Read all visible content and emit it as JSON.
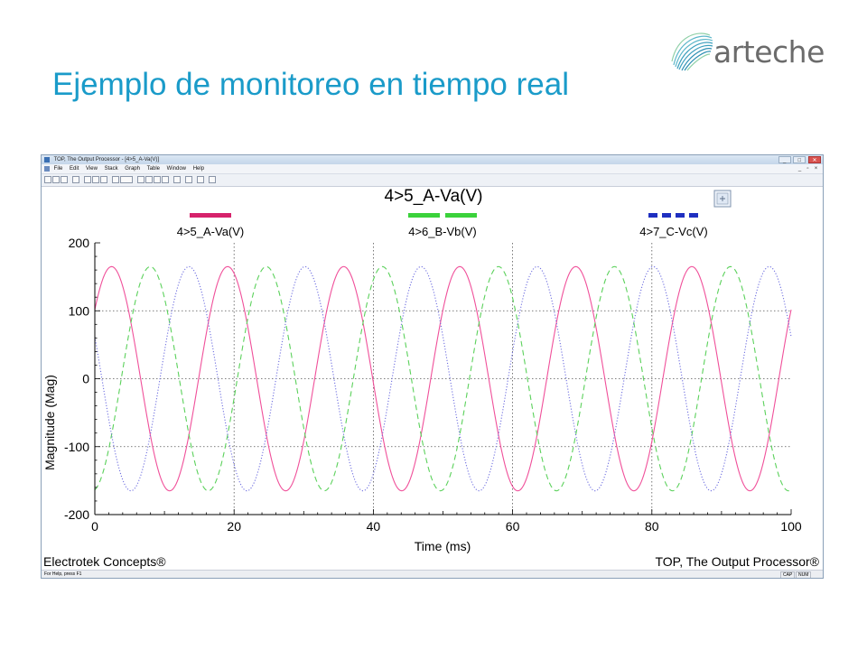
{
  "slide": {
    "title": "Ejemplo de monitoreo en tiempo real",
    "logo_text": "arteche",
    "colors": {
      "title": "#1a9bc9",
      "logo_text": "#6b6b6b"
    }
  },
  "window": {
    "title": "TOP, The Output Processor - [4>5_A-Va(V)]",
    "menu": [
      "File",
      "Edit",
      "View",
      "Stack",
      "Graph",
      "Table",
      "Window",
      "Help"
    ],
    "status_help": "For Help, press F1",
    "status_indicators": [
      "CAP",
      "NUM"
    ]
  },
  "footer": {
    "left": "Electrotek Concepts®",
    "right": "TOP, The Output Processor®"
  },
  "chart_data": {
    "type": "line",
    "title": "4>5_A-Va(V)",
    "xlabel": "Time (ms)",
    "ylabel": "Magnitude (Mag)",
    "xlim": [
      0,
      100
    ],
    "ylim": [
      -200,
      200
    ],
    "x_ticks": [
      0,
      20,
      40,
      60,
      80,
      100
    ],
    "y_ticks": [
      -200,
      -100,
      0,
      100,
      200
    ],
    "grid": true,
    "legend_position": "top",
    "series": [
      {
        "name": "4>5_A-Va(V)",
        "color": "#f0509a",
        "dash": "solid",
        "legend_color": "#d6226b",
        "amplitude": 165,
        "frequency_hz": 60,
        "phase_deg": 38
      },
      {
        "name": "4>6_B-Vb(V)",
        "color": "#5bd15b",
        "dash": "dashed",
        "legend_color": "#3bd23b",
        "amplitude": 165,
        "frequency_hz": 60,
        "phase_deg": -82
      },
      {
        "name": "4>7_C-Vc(V)",
        "color": "#6f6fe0",
        "dash": "dotted",
        "legend_color": "#1f2fc0",
        "amplitude": 165,
        "frequency_hz": 60,
        "phase_deg": 158
      }
    ]
  }
}
